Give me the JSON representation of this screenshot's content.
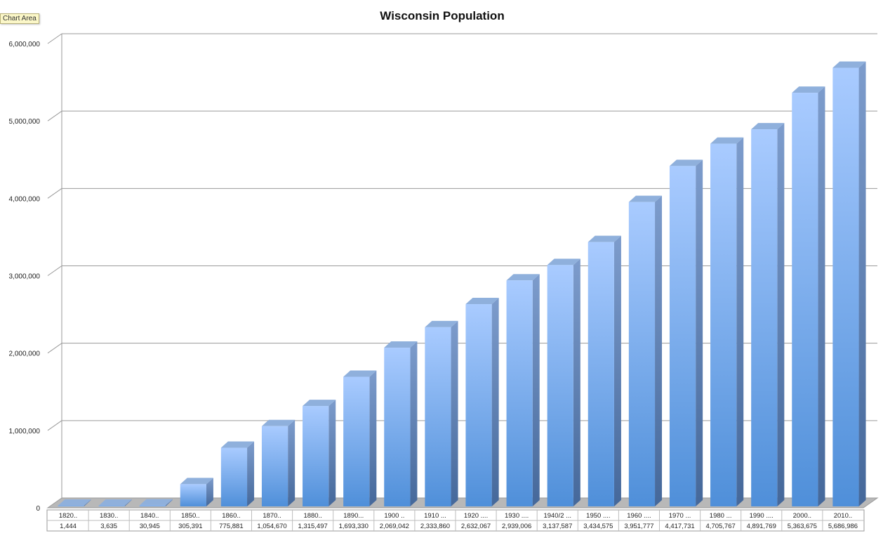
{
  "tooltip": {
    "label": "Chart Area"
  },
  "chart_data": {
    "type": "bar",
    "title": "Wisconsin Population",
    "xlabel": "",
    "ylabel": "",
    "ylim": [
      0,
      6000000
    ],
    "yticks": [
      0,
      1000000,
      2000000,
      3000000,
      4000000,
      5000000,
      6000000
    ],
    "ytick_labels": [
      "0",
      "1,000,000",
      "2,000,000",
      "3,000,000",
      "4,000,000",
      "5,000,000",
      "6,000,000"
    ],
    "grid": true,
    "legend": "none",
    "style": "3d-columns",
    "colors": {
      "bar": "#6fa3e6",
      "bar_top": "#8fb0dc",
      "bar_side": "#5f84b8",
      "grid": "#9a9a9a",
      "floor": "#b8b8b8"
    },
    "categories": [
      "1820..",
      "1830..",
      "1840..",
      "1850..",
      "1860..",
      "1870..",
      "1880..",
      "1890...",
      "1900 ..",
      "1910 ...",
      "1920 ....",
      "1930 ....",
      "1940/2 ...",
      "1950 ....",
      "1960 ....",
      "1970 ...",
      "1980 ...",
      "1990 ....",
      "2000..",
      "2010.."
    ],
    "values": [
      1444,
      3635,
      30945,
      305391,
      775881,
      1054670,
      1315497,
      1693330,
      2069042,
      2333860,
      2632067,
      2939006,
      3137587,
      3434575,
      3951777,
      4417731,
      4705767,
      4891769,
      5363675,
      5686986
    ],
    "value_labels": [
      "1,444",
      "3,635",
      "30,945",
      "305,391",
      "775,881",
      "1,054,670",
      "1,315,497",
      "1,693,330",
      "2,069,042",
      "2,333,860",
      "2,632,067",
      "2,939,006",
      "3,137,587",
      "3,434,575",
      "3,951,777",
      "4,417,731",
      "4,705,767",
      "4,891,769",
      "5,363,675",
      "5,686,986"
    ]
  }
}
